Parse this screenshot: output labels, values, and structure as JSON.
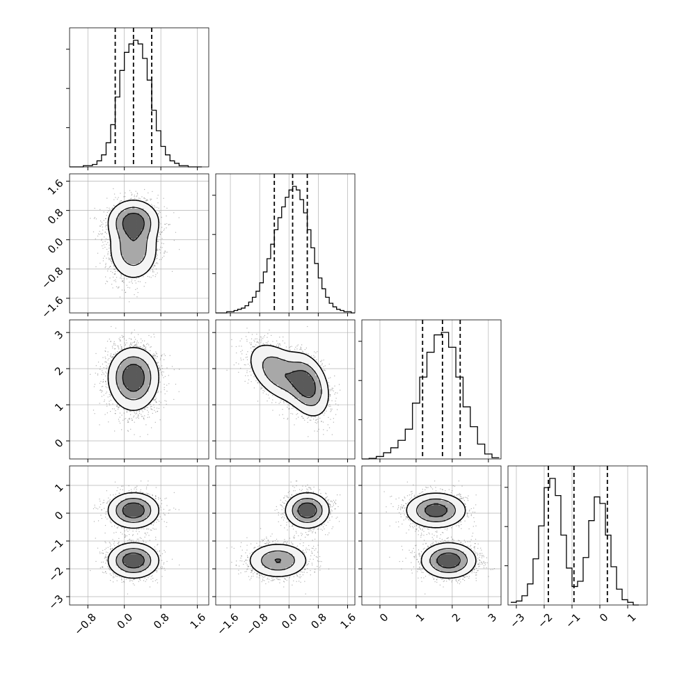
{
  "chart_data": {
    "type": "corner",
    "dims": 4,
    "colors": {
      "line": "#000000",
      "grid": "#b0b0b0",
      "background": "#ffffff",
      "points": "#555555"
    },
    "grid": true,
    "quantiles": [
      {
        "dim": 0,
        "values": [
          -0.2,
          0.2,
          0.6
        ]
      },
      {
        "dim": 1,
        "values": [
          -0.4,
          0.1,
          0.5
        ]
      },
      {
        "dim": 2,
        "values": [
          1.18,
          1.73,
          2.22
        ]
      },
      {
        "dim": 3,
        "values": [
          -1.85,
          -0.93,
          0.27
        ]
      }
    ],
    "axes": [
      {
        "range": [
          -1.2,
          1.85
        ],
        "ticks": [
          -0.8,
          0.0,
          0.8,
          1.6
        ],
        "tick_labels": [
          "−0.8",
          "0.0",
          "0.8",
          "1.6"
        ]
      },
      {
        "range": [
          -2.0,
          1.8
        ],
        "ticks": [
          -1.6,
          -0.8,
          0.0,
          0.8,
          1.6
        ],
        "tick_labels": [
          "−1.6",
          "−0.8",
          "0.0",
          "0.8",
          "1.6"
        ]
      },
      {
        "range": [
          -0.5,
          3.35
        ],
        "ticks": [
          0,
          1,
          2,
          3
        ],
        "tick_labels": [
          "0",
          "1",
          "2",
          "3"
        ]
      },
      {
        "range": [
          -3.3,
          1.7
        ],
        "ticks": [
          -3,
          -2,
          -1,
          0,
          1
        ],
        "tick_labels": [
          "−3",
          "−2",
          "−1",
          "0",
          "1"
        ]
      }
    ],
    "histograms": [
      {
        "dim": 0,
        "edges": [
          -1.2,
          -1.1,
          -1.0,
          -0.9,
          -0.8,
          -0.7,
          -0.6,
          -0.5,
          -0.4,
          -0.3,
          -0.2,
          -0.1,
          0.0,
          0.1,
          0.2,
          0.3,
          0.4,
          0.5,
          0.6,
          0.7,
          0.8,
          0.9,
          1.0,
          1.1,
          1.2,
          1.3,
          1.4,
          1.5,
          1.6,
          1.7
        ],
        "counts": [
          0,
          0,
          0,
          0.01,
          0.01,
          0.02,
          0.05,
          0.1,
          0.2,
          0.35,
          0.58,
          0.8,
          0.95,
          1.02,
          1.05,
          1.02,
          0.9,
          0.72,
          0.47,
          0.3,
          0.17,
          0.1,
          0.05,
          0.03,
          0.01,
          0.01,
          0,
          0,
          0
        ]
      },
      {
        "dim": 1,
        "edges": [
          -2.0,
          -1.9,
          -1.8,
          -1.7,
          -1.6,
          -1.5,
          -1.4,
          -1.3,
          -1.2,
          -1.1,
          -1.0,
          -0.9,
          -0.8,
          -0.7,
          -0.6,
          -0.5,
          -0.4,
          -0.3,
          -0.2,
          -0.1,
          0.0,
          0.1,
          0.2,
          0.3,
          0.4,
          0.5,
          0.6,
          0.7,
          0.8,
          0.9,
          1.0,
          1.1,
          1.2,
          1.3,
          1.4,
          1.5,
          1.6,
          1.7,
          1.8
        ],
        "counts": [
          0,
          0,
          0,
          0.01,
          0.01,
          0.02,
          0.03,
          0.04,
          0.06,
          0.09,
          0.13,
          0.18,
          0.25,
          0.34,
          0.45,
          0.57,
          0.69,
          0.79,
          0.88,
          0.96,
          1.02,
          1.05,
          1.02,
          0.94,
          0.83,
          0.69,
          0.54,
          0.41,
          0.29,
          0.2,
          0.13,
          0.08,
          0.05,
          0.03,
          0.02,
          0.01,
          0.01,
          0
        ]
      },
      {
        "dim": 2,
        "edges": [
          -0.5,
          -0.3,
          -0.1,
          0.1,
          0.3,
          0.5,
          0.7,
          0.9,
          1.1,
          1.3,
          1.5,
          1.7,
          1.9,
          2.1,
          2.3,
          2.5,
          2.7,
          2.9,
          3.1,
          3.3
        ],
        "counts": [
          0,
          0.005,
          0.02,
          0.05,
          0.09,
          0.15,
          0.24,
          0.45,
          0.66,
          0.86,
          1.0,
          1.02,
          0.9,
          0.66,
          0.42,
          0.26,
          0.12,
          0.04,
          0.01
        ]
      },
      {
        "dim": 3,
        "edges": [
          -3.2,
          -3.0,
          -2.8,
          -2.6,
          -2.4,
          -2.2,
          -2.0,
          -1.8,
          -1.6,
          -1.4,
          -1.2,
          -1.0,
          -0.8,
          -0.6,
          -0.4,
          -0.2,
          0.0,
          0.2,
          0.4,
          0.6,
          0.8,
          1.0,
          1.2,
          1.4
        ],
        "counts": [
          0.02,
          0.03,
          0.07,
          0.16,
          0.35,
          0.6,
          0.89,
          0.96,
          0.83,
          0.53,
          0.28,
          0.14,
          0.18,
          0.36,
          0.64,
          0.82,
          0.77,
          0.53,
          0.29,
          0.12,
          0.04,
          0.02,
          0
        ]
      }
    ],
    "clusters": [
      {
        "weight": 0.5,
        "means": [
          0.2,
          -0.3,
          1.9,
          -1.7
        ],
        "sds": [
          0.28,
          0.42,
          0.38,
          0.32
        ]
      },
      {
        "weight": 0.5,
        "means": [
          0.2,
          0.5,
          1.55,
          0.1
        ],
        "sds": [
          0.28,
          0.3,
          0.42,
          0.32
        ]
      }
    ]
  }
}
